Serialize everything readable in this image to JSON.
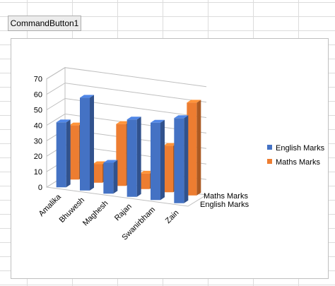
{
  "spreadsheet": {
    "command_button_label": "CommandButton1"
  },
  "chart_data": {
    "type": "bar",
    "subtype": "3d-clustered-column",
    "categories": [
      "Amalika",
      "Bhuwesh",
      "Maghesh",
      "Rajan",
      "Swanirbham",
      "Zain"
    ],
    "series": [
      {
        "name": "English Marks",
        "values": [
          42,
          60,
          20,
          50,
          50,
          55
        ],
        "color": "#4472c4"
      },
      {
        "name": "Maths Marks",
        "values": [
          35,
          12,
          40,
          10,
          30,
          60
        ],
        "color": "#ed7d31"
      }
    ],
    "y_ticks": [
      "0",
      "10",
      "20",
      "30",
      "40",
      "50",
      "60",
      "70"
    ],
    "ylim": [
      0,
      70
    ],
    "depth_labels": [
      "Maths Marks",
      "English Marks"
    ],
    "legend": {
      "position": "right",
      "entries": [
        "English Marks",
        "Maths Marks"
      ]
    },
    "gridlines": true
  }
}
